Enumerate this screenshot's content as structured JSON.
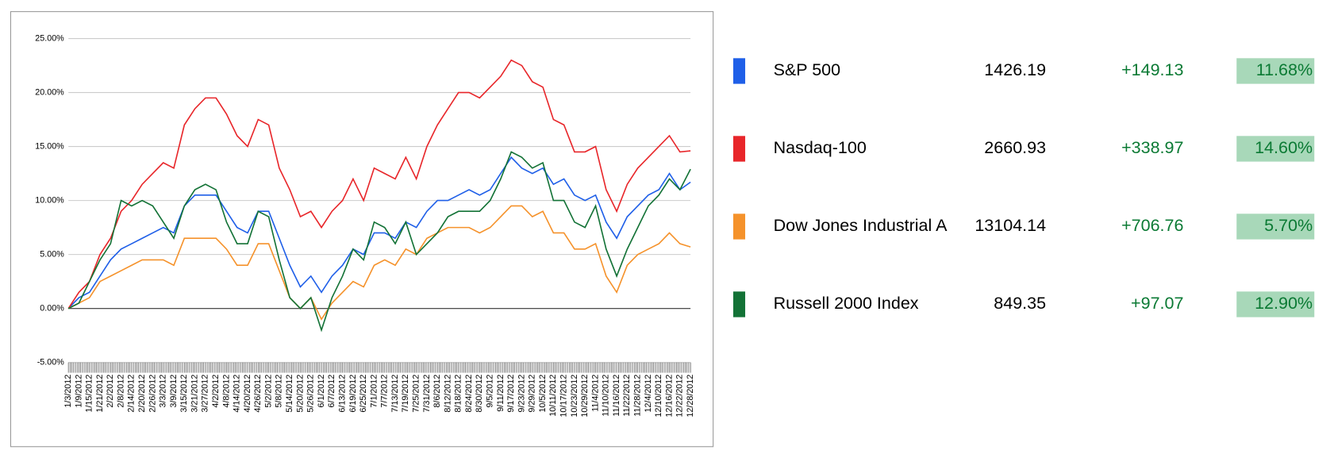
{
  "chart_data": {
    "type": "line",
    "categories": [
      "1/3/2012",
      "1/9/2012",
      "1/15/2012",
      "1/21/2012",
      "2/2/2012",
      "2/8/2012",
      "2/14/2012",
      "2/20/2012",
      "2/26/2012",
      "3/3/2012",
      "3/9/2012",
      "3/15/2012",
      "3/21/2012",
      "3/27/2012",
      "4/2/2012",
      "4/8/2012",
      "4/14/2012",
      "4/20/2012",
      "4/26/2012",
      "5/2/2012",
      "5/8/2012",
      "5/14/2012",
      "5/20/2012",
      "5/26/2012",
      "6/1/2012",
      "6/7/2012",
      "6/13/2012",
      "6/19/2012",
      "6/25/2012",
      "7/1/2012",
      "7/7/2012",
      "7/13/2012",
      "7/19/2012",
      "7/25/2012",
      "7/31/2012",
      "8/6/2012",
      "8/12/2012",
      "8/18/2012",
      "8/24/2012",
      "8/30/2012",
      "9/5/2012",
      "9/11/2012",
      "9/17/2012",
      "9/23/2012",
      "9/29/2012",
      "10/5/2012",
      "10/11/2012",
      "10/17/2012",
      "10/23/2012",
      "10/29/2012",
      "11/4/2012",
      "11/10/2012",
      "11/16/2012",
      "11/22/2012",
      "11/28/2012",
      "12/4/2012",
      "12/10/2012",
      "12/16/2012",
      "12/22/2012",
      "12/28/2012"
    ],
    "ylim": [
      -5,
      25
    ],
    "yticks": [
      {
        "value": -5,
        "label": "-5.00%"
      },
      {
        "value": 0,
        "label": "0.00%"
      },
      {
        "value": 5,
        "label": "5.00%"
      },
      {
        "value": 10,
        "label": "10.00%"
      },
      {
        "value": 15,
        "label": "15.00%"
      },
      {
        "value": 20,
        "label": "20.00%"
      },
      {
        "value": 25,
        "label": "25.00%"
      }
    ],
    "grid": true,
    "series": [
      {
        "name": "S&P 500",
        "color": "#1f5fe8",
        "price": 1426.19,
        "change": "+149.13",
        "change_pct": "11.68%",
        "values": [
          0,
          1,
          1.5,
          3,
          4.5,
          5.5,
          6,
          6.5,
          7,
          7.5,
          7,
          9.5,
          10.5,
          10.5,
          10.5,
          9,
          7.5,
          7,
          9,
          9,
          6.5,
          4,
          2,
          3,
          1.5,
          3,
          4,
          5.5,
          5,
          7,
          7,
          6.5,
          8,
          7.5,
          9,
          10,
          10,
          10.5,
          11,
          10.5,
          11,
          12.5,
          14,
          13,
          12.5,
          13,
          11.5,
          12,
          10.5,
          10,
          10.5,
          8,
          6.5,
          8.5,
          9.5,
          10.5,
          11,
          12.5,
          11,
          11.7
        ]
      },
      {
        "name": "Nasdaq-100",
        "color": "#e8262a",
        "price": 2660.93,
        "change": "+338.97",
        "change_pct": "14.60%",
        "values": [
          0,
          1.5,
          2.5,
          5,
          6.5,
          9,
          10,
          11.5,
          12.5,
          13.5,
          13,
          17,
          18.5,
          19.5,
          19.5,
          18,
          16,
          15,
          17.5,
          17,
          13,
          11,
          8.5,
          9,
          7.5,
          9,
          10,
          12,
          10,
          13,
          12.5,
          12,
          14,
          12,
          15,
          17,
          18.5,
          20,
          20,
          19.5,
          20.5,
          21.5,
          23,
          22.5,
          21,
          20.5,
          17.5,
          17,
          14.5,
          14.5,
          15,
          11,
          9,
          11.5,
          13,
          14,
          15,
          16,
          14.5,
          14.6
        ]
      },
      {
        "name": "Dow Jones Industrial A",
        "color": "#f5922b",
        "price": 13104.14,
        "change": "+706.76",
        "change_pct": "5.70%",
        "values": [
          0,
          0.5,
          1,
          2.5,
          3,
          3.5,
          4,
          4.5,
          4.5,
          4.5,
          4,
          6.5,
          6.5,
          6.5,
          6.5,
          5.5,
          4,
          4,
          6,
          6,
          3.5,
          1,
          0,
          1,
          -1,
          0.5,
          1.5,
          2.5,
          2,
          4,
          4.5,
          4,
          5.5,
          5,
          6.5,
          7,
          7.5,
          7.5,
          7.5,
          7,
          7.5,
          8.5,
          9.5,
          9.5,
          8.5,
          9,
          7,
          7,
          5.5,
          5.5,
          6,
          3,
          1.5,
          4,
          5,
          5.5,
          6,
          7,
          6,
          5.7
        ]
      },
      {
        "name": "Russell 2000 Index",
        "color": "#137236",
        "price": 849.35,
        "change": "+97.07",
        "change_pct": "12.90%",
        "values": [
          0,
          0.5,
          2.5,
          4.5,
          6,
          10,
          9.5,
          10,
          9.5,
          8,
          6.5,
          9.5,
          11,
          11.5,
          11,
          8,
          6,
          6,
          9,
          8.5,
          4.5,
          1,
          0,
          1,
          -2,
          1,
          3,
          5.5,
          4.5,
          8,
          7.5,
          6,
          8,
          5,
          6,
          7,
          8.5,
          9,
          9,
          9,
          10,
          12,
          14.5,
          14,
          13,
          13.5,
          10,
          10,
          8,
          7.5,
          9.5,
          5.5,
          3,
          5.5,
          7.5,
          9.5,
          10.5,
          12,
          11,
          12.9
        ]
      }
    ]
  }
}
